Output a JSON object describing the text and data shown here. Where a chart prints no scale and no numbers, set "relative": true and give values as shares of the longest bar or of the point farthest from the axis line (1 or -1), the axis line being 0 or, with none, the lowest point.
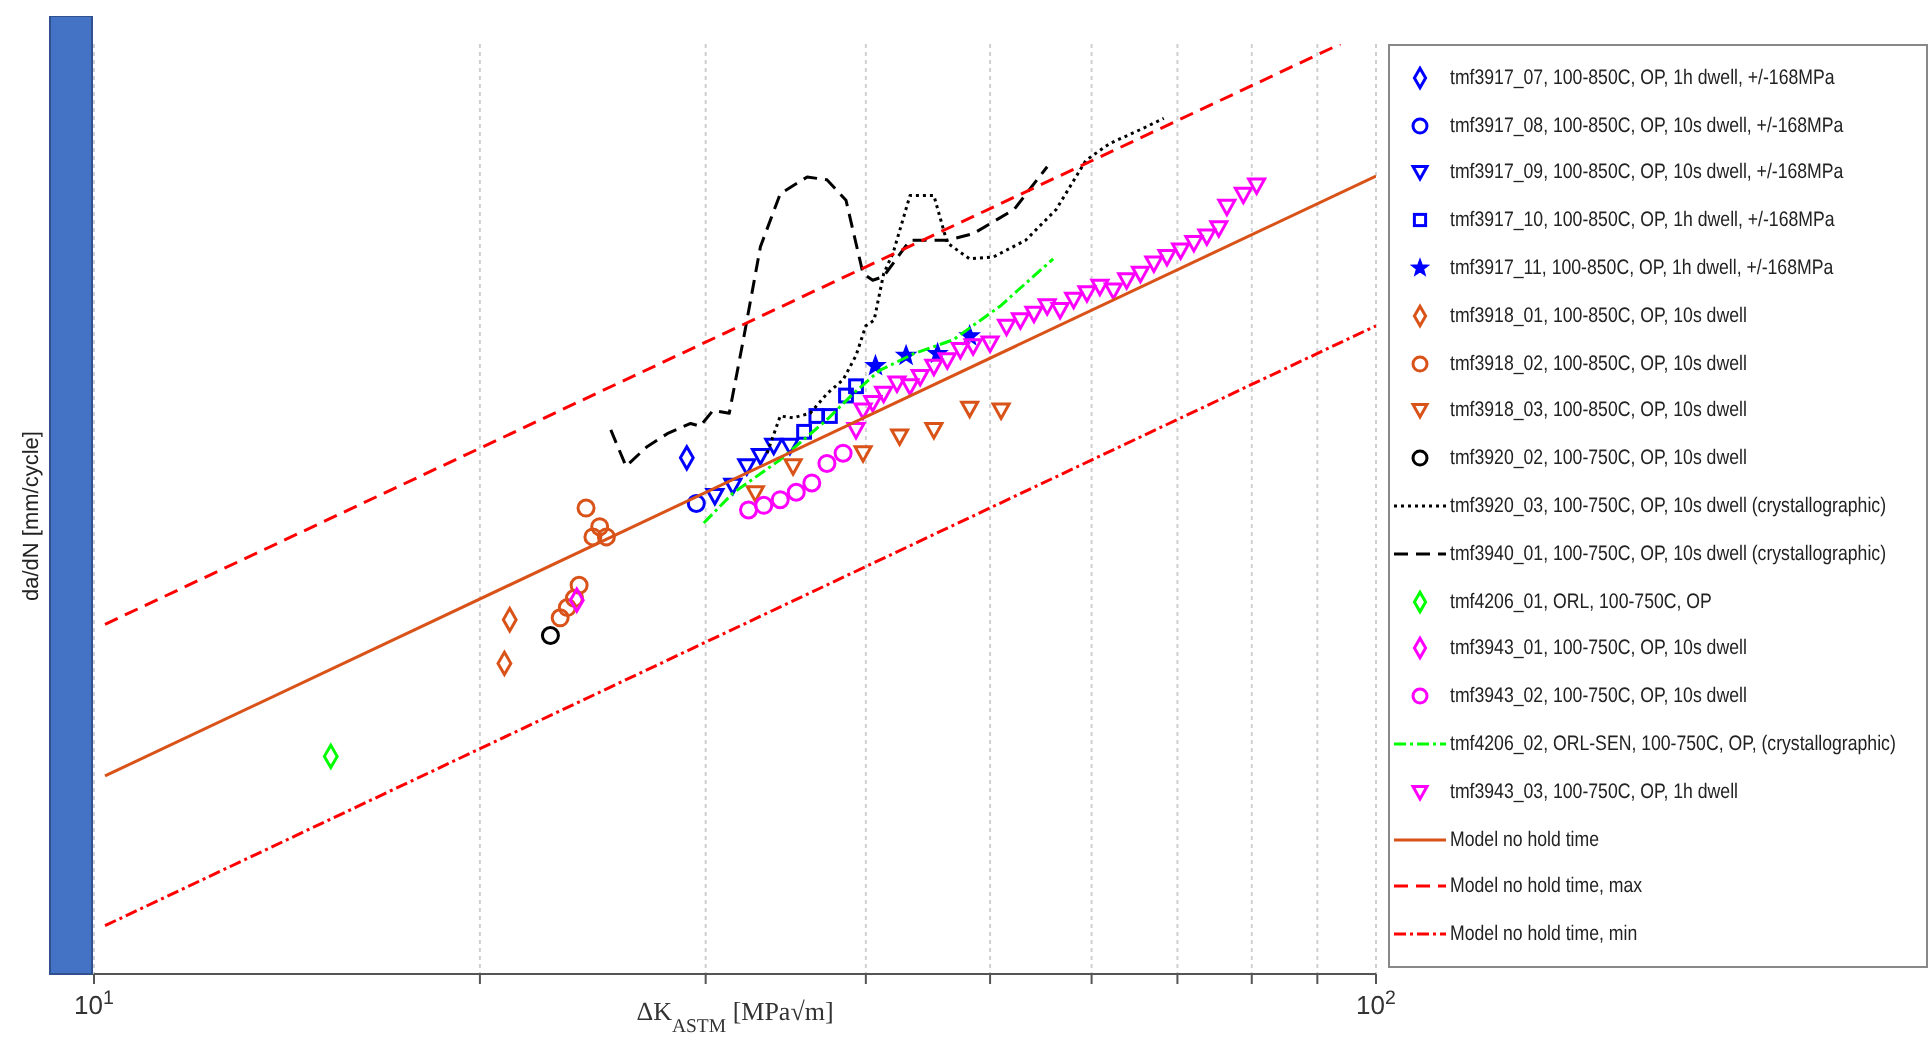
{
  "chart_data": {
    "type": "scatter",
    "xlabel": "ΔK$_{ASTM}$ [MPa√m]",
    "ylabel": "da/dN [mm/cycle]",
    "relative": true,
    "log": "x",
    "xlim": [
      10,
      100
    ],
    "xticks": [
      {
        "value": 10,
        "label": "10$^{1}$"
      },
      {
        "value": 20,
        "label": null
      },
      {
        "value": 30,
        "label": null
      },
      {
        "value": 40,
        "label": null
      },
      {
        "value": 50,
        "label": null
      },
      {
        "value": 60,
        "label": null
      },
      {
        "value": 70,
        "label": null
      },
      {
        "value": 80,
        "label": null
      },
      {
        "value": 90,
        "label": null
      },
      {
        "value": 100,
        "label": "10$^{2}$"
      }
    ],
    "grid": "x",
    "legend": "right",
    "series": [
      {
        "name": "tmf3917_07, 100-850C, OP, 1h dwell, +/-168MPa",
        "color": "#0000ff",
        "marker": "diamond",
        "x": [
          29.0
        ],
        "values": [
          0.555
        ]
      },
      {
        "name": "tmf3917_08, 100-850C, OP, 10s dwell, +/-168MPa",
        "color": "#0000ff",
        "marker": "circle",
        "x": [
          29.5
        ],
        "values": [
          0.506
        ]
      },
      {
        "name": "tmf3917_09, 100-850C, OP, 10s dwell, +/-168MPa",
        "color": "#0000ff",
        "marker": "triangle",
        "x": [
          30.5,
          31.5,
          32.3,
          33.1,
          33.9,
          34.9
        ],
        "values": [
          0.514,
          0.525,
          0.546,
          0.557,
          0.568,
          0.568
        ]
      },
      {
        "name": "tmf3917_10, 100-850C, OP, 1h dwell, +/-168MPa",
        "color": "#0000ff",
        "marker": "square",
        "x": [
          35.8,
          36.6,
          37.5,
          38.6,
          39.3
        ],
        "values": [
          0.583,
          0.6,
          0.6,
          0.622,
          0.632
        ]
      },
      {
        "name": "tmf3917_11, 100-850C, OP, 1h dwell, +/-168MPa",
        "color": "#0000ff",
        "marker": "star",
        "x": [
          40.7,
          43.0,
          45.5,
          48.2
        ],
        "values": [
          0.654,
          0.665,
          0.667,
          0.686
        ]
      },
      {
        "name": "tmf3918_01, 100-850C, OP, 10s dwell",
        "color": "#d95319",
        "marker": "diamond",
        "x": [
          20.9,
          21.1
        ],
        "values": [
          0.334,
          0.381
        ]
      },
      {
        "name": "tmf3918_02, 100-850C, OP, 10s dwell",
        "color": "#d95319",
        "marker": "circle",
        "x": [
          23.1,
          23.4,
          23.7,
          23.9,
          24.2,
          24.5,
          24.8,
          25.1
        ],
        "values": [
          0.383,
          0.394,
          0.404,
          0.418,
          0.501,
          0.47,
          0.481,
          0.47
        ]
      },
      {
        "name": "tmf3918_03, 100-850C, OP, 10s dwell",
        "color": "#d95319",
        "marker": "triangle",
        "x": [
          32.8,
          35.1,
          39.8,
          42.5,
          45.2,
          48.2,
          51.0
        ],
        "values": [
          0.517,
          0.546,
          0.56,
          0.578,
          0.585,
          0.608,
          0.606
        ]
      },
      {
        "name": "tmf3920_02, 100-750C, OP, 10s dwell",
        "color": "#000000",
        "marker": "circle",
        "x": [
          22.7
        ],
        "values": [
          0.364
        ]
      },
      {
        "name": "tmf3920_03, 100-750C, OP, 10s dwell  (crystallographic)",
        "type": "line",
        "color": "#000000",
        "line_style": "dotted",
        "marker": "none",
        "x": [
          33.5,
          34.3,
          35.1,
          36.2,
          37.3,
          38.4,
          39.3,
          40.0,
          40.6,
          41.3,
          42.0,
          43.3,
          45.2,
          46.3,
          48.2,
          50.3,
          53.3,
          56.3,
          59.4,
          62.0,
          65.5,
          68.3
        ],
        "values": [
          0.56,
          0.6,
          0.598,
          0.603,
          0.624,
          0.639,
          0.665,
          0.697,
          0.703,
          0.753,
          0.775,
          0.837,
          0.837,
          0.786,
          0.769,
          0.771,
          0.789,
          0.822,
          0.875,
          0.893,
          0.908,
          0.92
        ]
      },
      {
        "name": "tmf3940_01, 100-750C, OP, 10s dwell (crystallographic)",
        "type": "line",
        "color": "#000000",
        "line_style": "dashed",
        "marker": "none",
        "x": [
          25.3,
          26.0,
          27.0,
          28.0,
          29.2,
          29.7,
          30.4,
          31.3,
          32.1,
          33.1,
          34.3,
          36.0,
          37.3,
          38.6,
          39.8,
          40.5,
          41.3,
          43.3,
          46.3,
          48.5,
          52.2,
          55.4
        ],
        "values": [
          0.585,
          0.546,
          0.567,
          0.581,
          0.592,
          0.589,
          0.606,
          0.603,
          0.682,
          0.782,
          0.839,
          0.857,
          0.854,
          0.832,
          0.753,
          0.746,
          0.75,
          0.789,
          0.789,
          0.796,
          0.822,
          0.868
        ]
      },
      {
        "name": "tmf4206_01, ORL, 100-750C, OP",
        "color": "#00ff00",
        "marker": "diamond",
        "x": [
          15.3
        ],
        "values": [
          0.234
        ]
      },
      {
        "name": "tmf3943_01, 100-750C, OP, 10s dwell",
        "color": "#ff00ff",
        "marker": "diamond",
        "x": [
          23.8
        ],
        "values": [
          0.402
        ]
      },
      {
        "name": "tmf3943_02, 100-750C, OP, 10s dwell",
        "color": "#ff00ff",
        "marker": "circle",
        "x": [
          32.4,
          33.3,
          34.3,
          35.3,
          36.3,
          37.3,
          38.4
        ],
        "values": [
          0.499,
          0.504,
          0.51,
          0.518,
          0.528,
          0.549,
          0.56
        ]
      },
      {
        "name": "tmf4206_02, ORL-SEN, 100-750C, OP, (crystallographic)",
        "type": "line",
        "color": "#00ff00",
        "line_style": "dashdot",
        "marker": "none",
        "x": [
          29.9,
          31.5,
          34.3,
          37.3,
          39.1,
          41.0,
          43.6,
          46.8,
          50.9,
          56.0
        ],
        "values": [
          0.485,
          0.517,
          0.553,
          0.596,
          0.624,
          0.649,
          0.667,
          0.682,
          0.718,
          0.769
        ]
      },
      {
        "name": "tmf3943_03, 100-750C, OP, 1h dwell",
        "color": "#ff00ff",
        "marker": "triangle",
        "x": [
          39.3,
          39.8,
          40.5,
          41.3,
          42.3,
          43.3,
          44.1,
          45.2,
          46.3,
          47.4,
          48.5,
          50.0,
          51.5,
          52.8,
          54.1,
          55.4,
          56.7,
          58.1,
          59.5,
          60.9,
          62.4,
          63.9,
          65.5,
          67.1,
          68.7,
          70.4,
          72.1,
          73.8,
          75.4,
          76.5,
          78.8,
          80.7
        ],
        "values": [
          0.585,
          0.606,
          0.614,
          0.624,
          0.635,
          0.632,
          0.642,
          0.653,
          0.66,
          0.671,
          0.675,
          0.678,
          0.696,
          0.703,
          0.71,
          0.718,
          0.714,
          0.725,
          0.732,
          0.739,
          0.735,
          0.746,
          0.753,
          0.764,
          0.771,
          0.778,
          0.786,
          0.793,
          0.802,
          0.825,
          0.838,
          0.848
        ]
      },
      {
        "name": "Model no hold time",
        "type": "line",
        "color": "#d95319",
        "line_style": "solid",
        "marker": "none",
        "x": [
          10.2,
          100
        ],
        "values": [
          0.213,
          0.858
        ]
      },
      {
        "name": "Model no hold time, max",
        "type": "line",
        "color": "#ff0000",
        "line_style": "dashed",
        "marker": "none",
        "x": [
          10.2,
          93.8
        ],
        "values": [
          0.376,
          1
        ]
      },
      {
        "name": "Model no hold time, min",
        "type": "line",
        "color": "#ff0000",
        "line_style": "dashdot",
        "marker": "none",
        "x": [
          10.2,
          100
        ],
        "values": [
          0.052,
          0.697
        ]
      }
    ]
  }
}
